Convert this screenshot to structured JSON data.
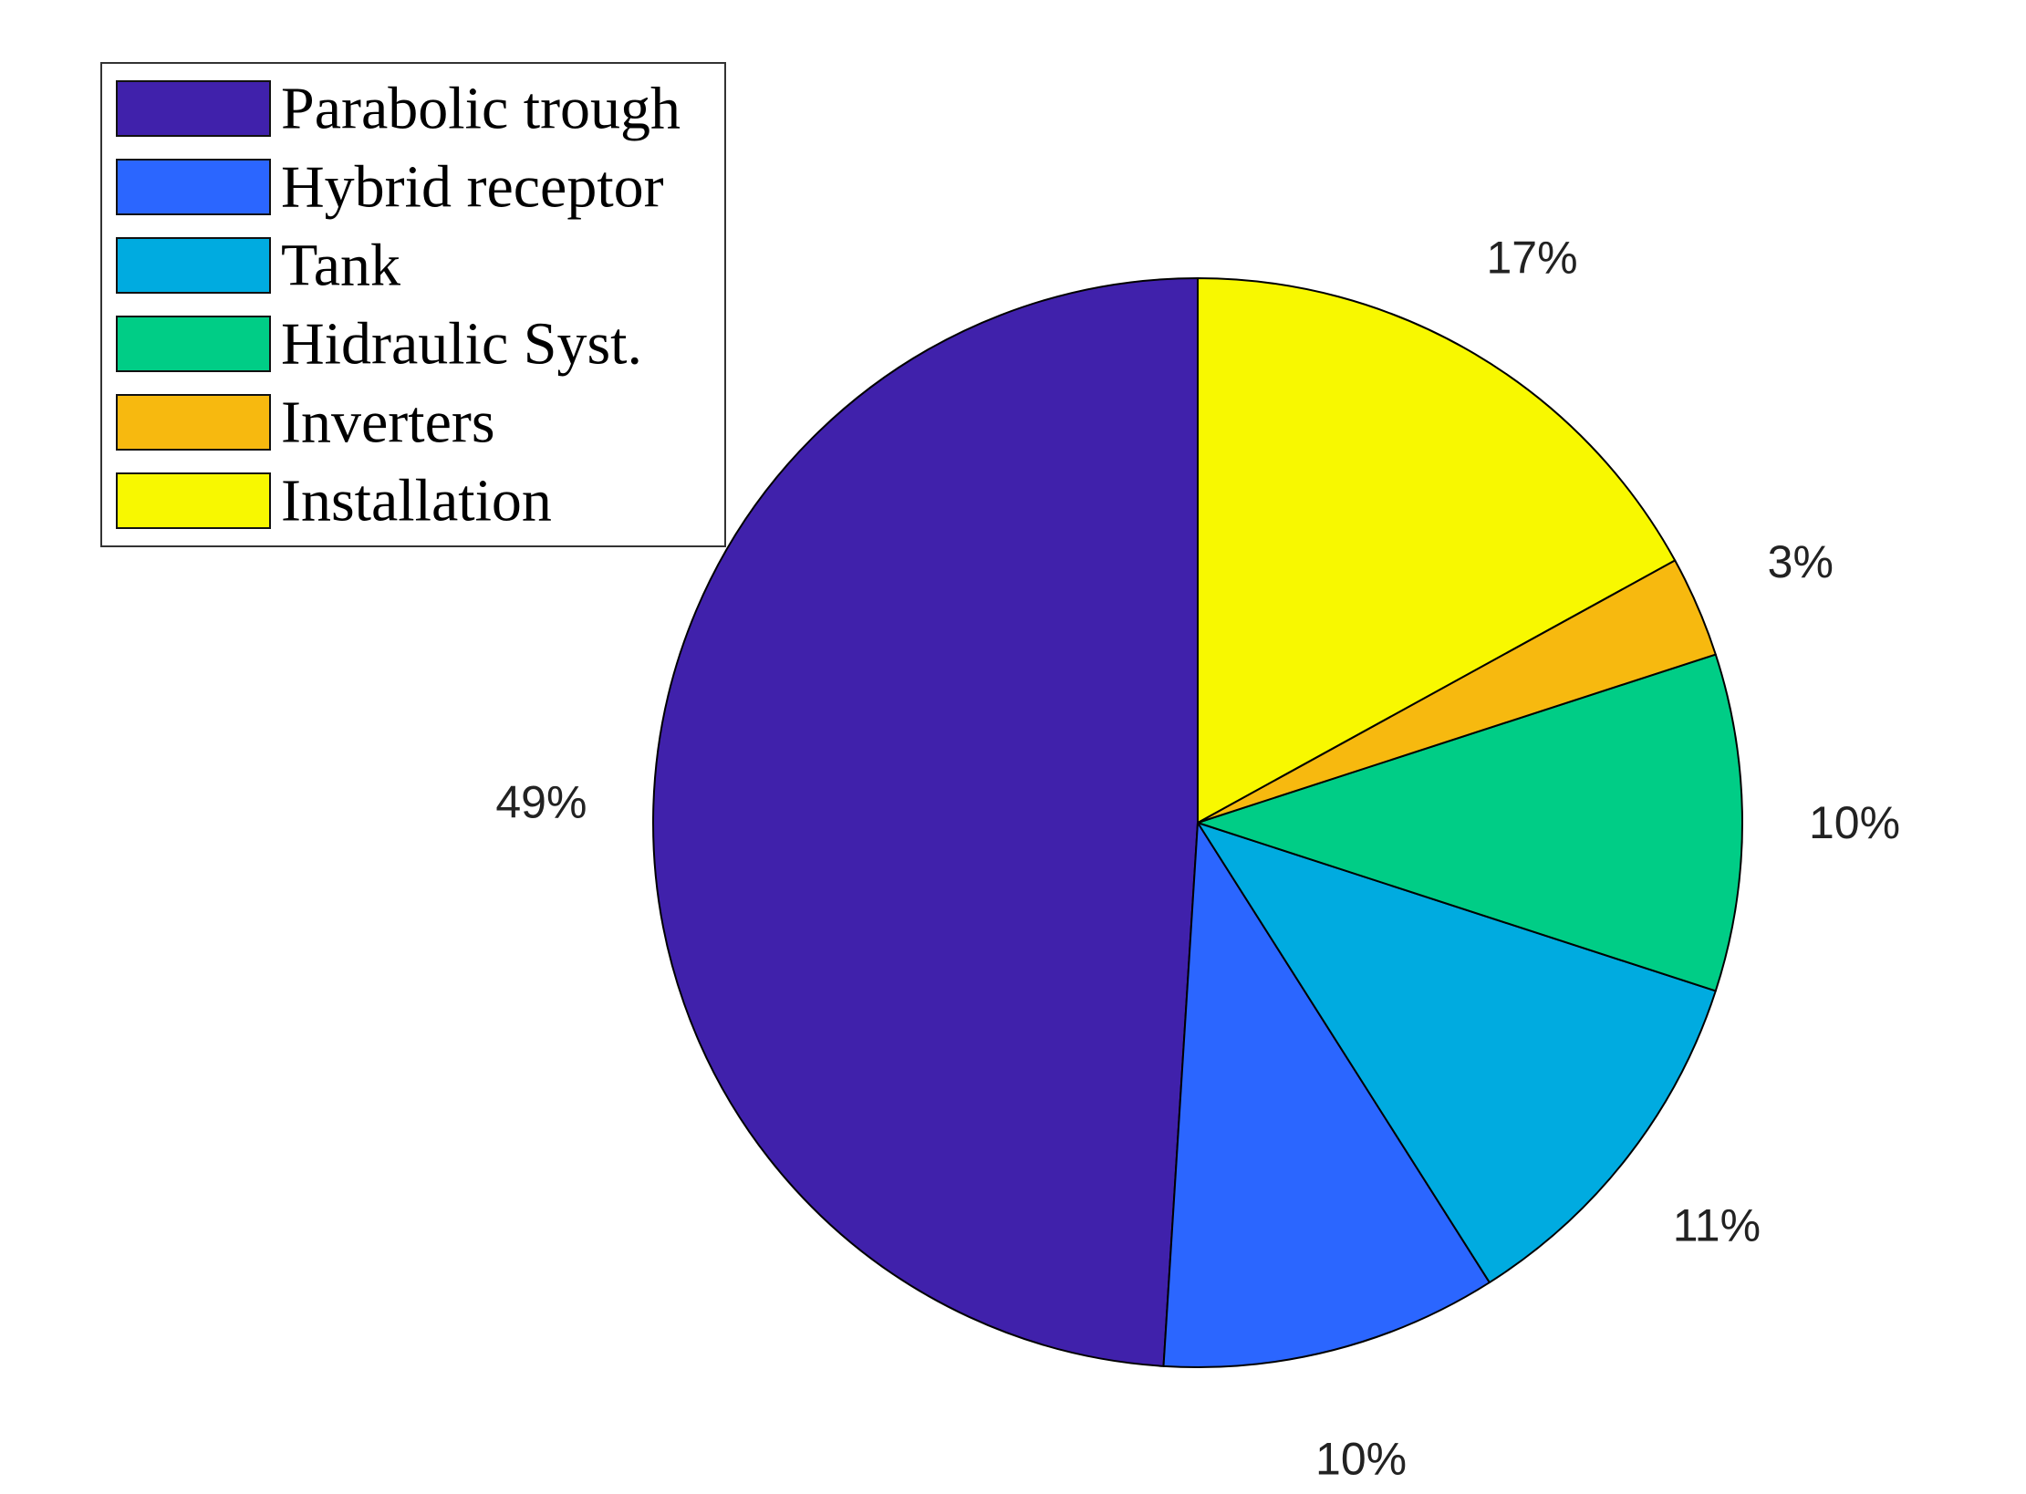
{
  "chart_data": {
    "type": "pie",
    "title": "",
    "categories": [
      "Parabolic trough",
      "Hybrid receptor",
      "Tank",
      "Hidraulic Syst.",
      "Inverters",
      "Installation"
    ],
    "values": [
      49,
      10,
      11,
      10,
      3,
      17
    ],
    "labels": [
      "49%",
      "10%",
      "11%",
      "10%",
      "3%",
      "17%"
    ],
    "colors": [
      "#4021ab",
      "#2b66ff",
      "#00abe0",
      "#00cd86",
      "#f7b90f",
      "#f8f800"
    ],
    "start_angle_deg": 90,
    "direction": "counterclockwise",
    "legend": {
      "placement": "top-left",
      "entries": [
        "Parabolic trough",
        "Hybrid receptor",
        "Tank",
        "Hidraulic Syst.",
        "Inverters",
        "Installation"
      ]
    }
  }
}
